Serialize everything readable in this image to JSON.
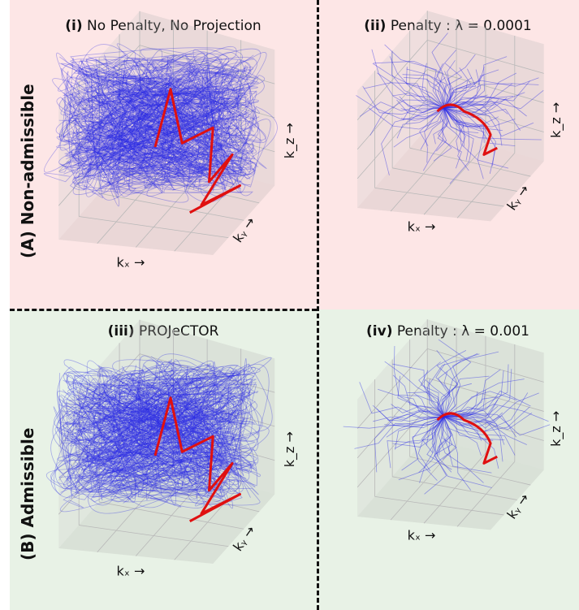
{
  "panels": [
    {
      "id": "i",
      "num": "(i)",
      "title": "No Penalty, No Projection",
      "row": "A"
    },
    {
      "id": "ii",
      "num": "(ii)",
      "title": "Penalty : λ = 0.0001",
      "row": "A"
    },
    {
      "id": "iii",
      "num": "(iii)",
      "title": "PROJeCTOR",
      "row": "B"
    },
    {
      "id": "iv",
      "num": "(iv)",
      "title": "Penalty : λ = 0.001",
      "row": "B"
    }
  ],
  "rows": {
    "A": "(A) Non-admissible",
    "B": "(B) Admissible"
  },
  "axes": {
    "x": "kₓ →",
    "y": "kᵧ →",
    "z": "k_z →"
  },
  "colors": {
    "top_bg": "#fde6e6",
    "bottom_bg": "#e8f2e6",
    "trajectories": "#2a2ae6",
    "highlight": "#e01010"
  }
}
